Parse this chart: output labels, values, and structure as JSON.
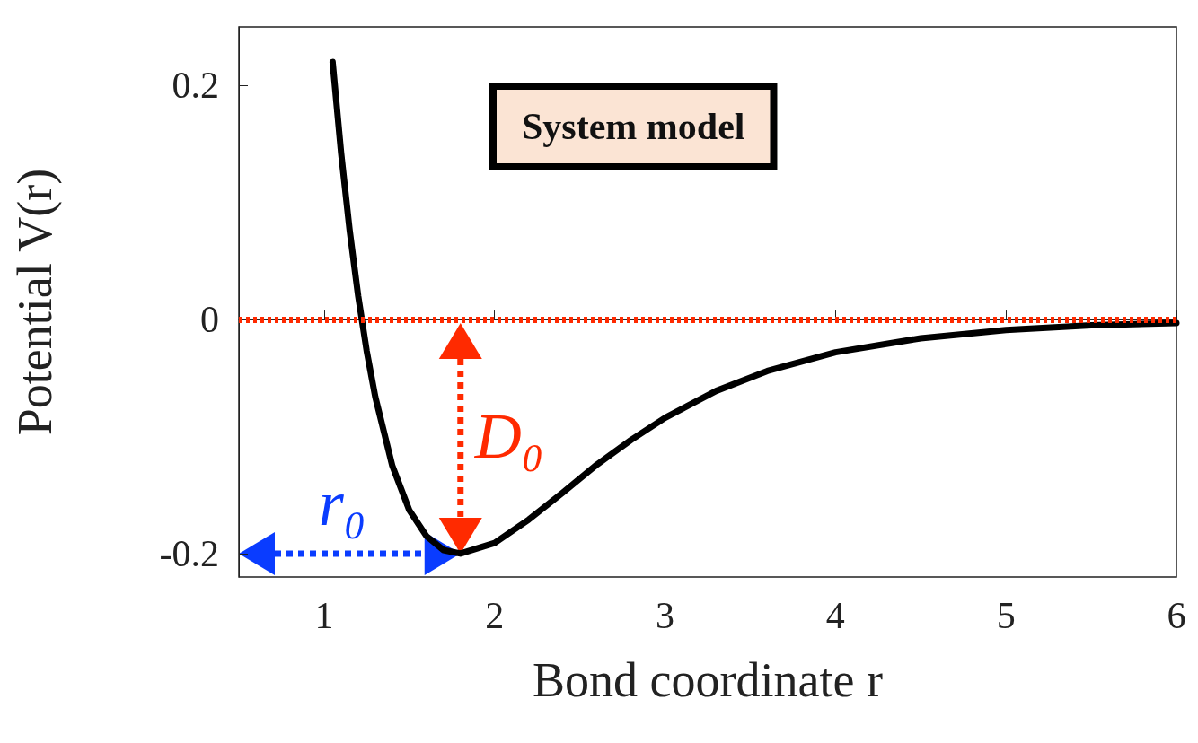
{
  "chart_data": {
    "type": "line",
    "xlabel": "Bond coordinate r",
    "ylabel": "Potential V(r)",
    "x": [
      1.05,
      1.1,
      1.15,
      1.2,
      1.25,
      1.3,
      1.4,
      1.5,
      1.6,
      1.7,
      1.8,
      2.0,
      2.2,
      2.4,
      2.6,
      2.8,
      3.0,
      3.3,
      3.6,
      4.0,
      4.5,
      5.0,
      5.5,
      6.0
    ],
    "series": [
      {
        "color": "#000000",
        "values": [
          0.22,
          0.142,
          0.076,
          0.02,
          -0.027,
          -0.066,
          -0.125,
          -0.163,
          -0.185,
          -0.197,
          -0.2,
          -0.191,
          -0.171,
          -0.148,
          -0.124,
          -0.103,
          -0.084,
          -0.061,
          -0.044,
          -0.028,
          -0.016,
          -0.009,
          -0.005,
          -0.003
        ]
      }
    ],
    "xlim": [
      0.5,
      6
    ],
    "xticks": [
      1,
      2,
      3,
      4,
      5,
      6
    ],
    "ylim": [
      -0.22,
      0.25
    ],
    "yticks": [
      -0.2,
      0,
      0.2
    ],
    "grid": false,
    "marker": "none",
    "ref_lines": [
      {
        "axis": "y",
        "value": 0,
        "color": "#ff2a00",
        "line_style": "dotted"
      }
    ],
    "annotations": [
      "System model",
      "D₀",
      "r₀"
    ]
  }
}
